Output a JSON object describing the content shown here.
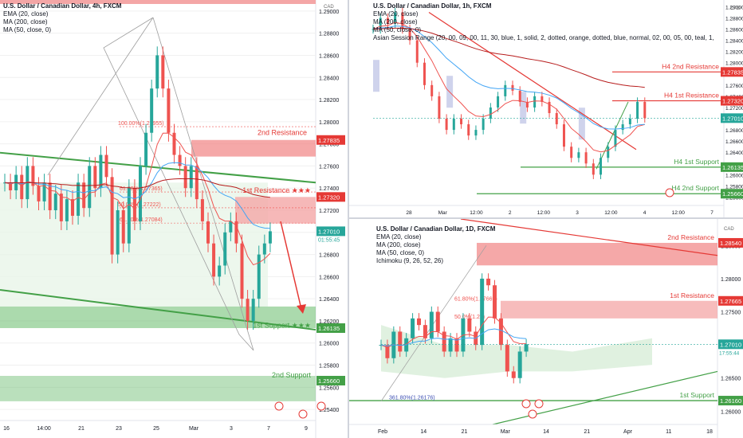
{
  "panels": {
    "p1": {
      "title": "U.S. Dollar / Canadian Dollar, 4h, FXCM",
      "indicators": [
        "EMA (20, close)",
        "MA (200, close)",
        "MA (50, close, 0)"
      ],
      "axis_ticks": [
        "1.29000",
        "1.28800",
        "1.28600",
        "1.28400",
        "1.28200",
        "1.28000",
        "1.27800",
        "1.27600",
        "1.27400",
        "1.27200",
        "1.27000",
        "1.26800",
        "1.26600",
        "1.26400",
        "1.26200",
        "1.26000",
        "1.25800",
        "1.25600",
        "1.25400"
      ],
      "x_ticks": [
        "16",
        "14:00",
        "21",
        "23",
        "25",
        "Mar",
        "3",
        "7",
        "9"
      ],
      "resistance2_label": "2nd Resistance",
      "resistance1_label": "1st Resistance ★★★",
      "support1_label": "1st Support ★★★",
      "support2_label": "2nd Support",
      "fib_labels": [
        "100.00%(1.27955)",
        "61.80%(1.27365)",
        "50.00%(1.27222)",
        "61.80%(1.27084)"
      ],
      "price_tags": {
        "r2": "1.27835",
        "r1": "1.27320",
        "cur": "1.27010",
        "cur_sub": "01:55:45",
        "s1": "1.26135",
        "s2": "1.25660"
      },
      "cad_badge": "CAD"
    },
    "p2": {
      "title": "U.S. Dollar / Canadian Dollar, 1h, FXCM",
      "indicators": [
        "EMA (20, close)",
        "MA (200, close)",
        "MA (50, close, 0)",
        "Asian Session Range (20, 00, 09, 00, 11, 30, blue, 1, solid, 2, dotted, orange, dotted, blue, normal, 02, 00, 05, 00, teal, 1, solid, 2, dotted, teal, dotted, teal, normal, 08, 0"
      ],
      "axis_ticks": [
        "1.29000",
        "1.28800",
        "1.28600",
        "1.28400",
        "1.28200",
        "1.28000",
        "1.27800",
        "1.27600",
        "1.27400",
        "1.27200",
        "1.27000",
        "1.26800",
        "1.26600",
        "1.26400",
        "1.26200",
        "1.26000",
        "1.25800",
        "1.25600"
      ],
      "x_ticks": [
        "28",
        "Mar",
        "12:00",
        "2",
        "12:00",
        "3",
        "12:00",
        "4",
        "12:00",
        "7"
      ],
      "labels": {
        "r2": "H4 2nd Resistance",
        "r1": "H4 1st Resistance",
        "s1": "H4 1st Support",
        "s2": "H4 2nd Support"
      },
      "price_tags": {
        "r2": "1.27835",
        "r1": "1.27320",
        "cur": "1.27010",
        "cur_sub": "55:45",
        "s1": "1.26135",
        "s2": "1.25660"
      },
      "cad_badge": "CAD"
    },
    "p3": {
      "title": "U.S. Dollar / Canadian Dollar, 1D, FXCM",
      "indicators": [
        "EMA (20, close)",
        "MA (200, close)",
        "MA (50, close, 0)",
        "Ichimoku (9, 26, 52, 26)"
      ],
      "axis_ticks": [
        "1.28500",
        "1.28000",
        "1.27500",
        "1.27000",
        "1.26500",
        "1.26000"
      ],
      "x_ticks": [
        "Feb",
        "14",
        "21",
        "Mar",
        "14",
        "21",
        "Apr",
        "11",
        "18"
      ],
      "labels": {
        "r2": "2nd Resistance",
        "r1": "1st Resistance",
        "s1": "1st Support"
      },
      "fib_labels": [
        "61.80%(1.27669)",
        "50.0%(1.27)",
        "361.80%(1.26176)"
      ],
      "price_tags": {
        "r2": "1.28540",
        "r1": "1.27665",
        "cur": "1.27010",
        "cur_sub": "17:55:44",
        "s1": "1.26160"
      },
      "cad_badge": "CAD"
    }
  },
  "chart_data": [
    {
      "type": "line",
      "title": "U.S. Dollar / Canadian Dollar, 4h, FXCM",
      "ylim": [
        1.253,
        1.291
      ],
      "levels": {
        "2nd Resistance": [
          1.27685,
          1.27835
        ],
        "1st Resistance": [
          1.2708,
          1.2732
        ],
        "1st Support": [
          1.26135,
          1.2633
        ],
        "2nd Support": [
          1.2556,
          1.2566
        ]
      },
      "series": [
        {
          "values": [
            1.2745,
            1.2738,
            1.2752,
            1.273,
            1.276,
            1.2742,
            1.2728,
            1.2745,
            1.272,
            1.2735,
            1.271,
            1.273,
            1.2715,
            1.2745,
            1.2722,
            1.276,
            1.274,
            1.277,
            1.275,
            1.268,
            1.272,
            1.269,
            1.274,
            1.271,
            1.276,
            1.279,
            1.283,
            1.286,
            1.283,
            1.279,
            1.277,
            1.276,
            1.274,
            1.276,
            1.273,
            1.271,
            1.269,
            1.266,
            1.267,
            1.27,
            1.271,
            1.269,
            1.264,
            1.262,
            1.264,
            1.268,
            1.269,
            1.2701
          ]
        }
      ]
    },
    {
      "type": "line",
      "title": "U.S. Dollar / Canadian Dollar, 1h, FXCM",
      "ylim": [
        1.2545,
        1.2912
      ],
      "levels": {
        "H4 2nd Resistance": 1.27835,
        "H4 1st Resistance": 1.2732,
        "H4 1st Support": 1.26135,
        "H4 2nd Support": 1.2566
      },
      "series": [
        {
          "values": [
            1.286,
            1.288,
            1.287,
            1.289,
            1.286,
            1.284,
            1.28,
            1.276,
            1.274,
            1.27,
            1.268,
            1.27,
            1.269,
            1.267,
            1.268,
            1.27,
            1.272,
            1.274,
            1.276,
            1.275,
            1.273,
            1.272,
            1.274,
            1.273,
            1.271,
            1.269,
            1.265,
            1.263,
            1.264,
            1.262,
            1.26,
            1.263,
            1.265,
            1.268,
            1.269,
            1.27,
            1.273,
            1.2701
          ]
        }
      ]
    },
    {
      "type": "line",
      "title": "U.S. Dollar / Canadian Dollar, 1D, FXCM",
      "ylim": [
        1.258,
        1.289
      ],
      "levels": {
        "2nd Resistance": [
          1.282,
          1.2854
        ],
        "1st Resistance": [
          1.274,
          1.27665
        ],
        "1st Support": 1.2616
      },
      "series": [
        {
          "values": [
            1.27,
            1.268,
            1.272,
            1.269,
            1.271,
            1.274,
            1.273,
            1.271,
            1.275,
            1.272,
            1.269,
            1.271,
            1.269,
            1.274,
            1.272,
            1.27,
            1.28,
            1.279,
            1.274,
            1.27,
            1.266,
            1.265,
            1.269,
            1.2701
          ]
        }
      ]
    }
  ]
}
